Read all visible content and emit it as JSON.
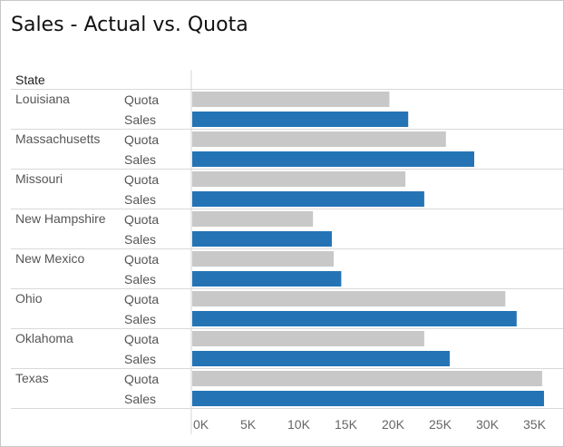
{
  "chart_data": {
    "type": "bar",
    "title": "Sales - Actual vs. Quota",
    "row_header": "State",
    "measures": [
      "Quota",
      "Sales"
    ],
    "categories": [
      "Louisiana",
      "Massachusetts",
      "Missouri",
      "New Hampshire",
      "New Mexico",
      "Ohio",
      "Oklahoma",
      "Texas"
    ],
    "series": [
      {
        "name": "Quota",
        "color": "#c8c8c8",
        "values": [
          21000,
          27000,
          22700,
          12900,
          15100,
          33300,
          24700,
          37200
        ]
      },
      {
        "name": "Sales",
        "color": "#2474b5",
        "values": [
          23000,
          30000,
          24700,
          14900,
          15900,
          34500,
          27400,
          37400
        ]
      }
    ],
    "xlim": [
      0,
      38000
    ],
    "xticks": [
      0,
      5000,
      10000,
      15000,
      20000,
      25000,
      30000,
      35000
    ],
    "xtick_labels": [
      "0K",
      "5K",
      "10K",
      "15K",
      "20K",
      "25K",
      "30K",
      "35K"
    ],
    "xlabel": "",
    "ylabel": "",
    "grid": false
  }
}
